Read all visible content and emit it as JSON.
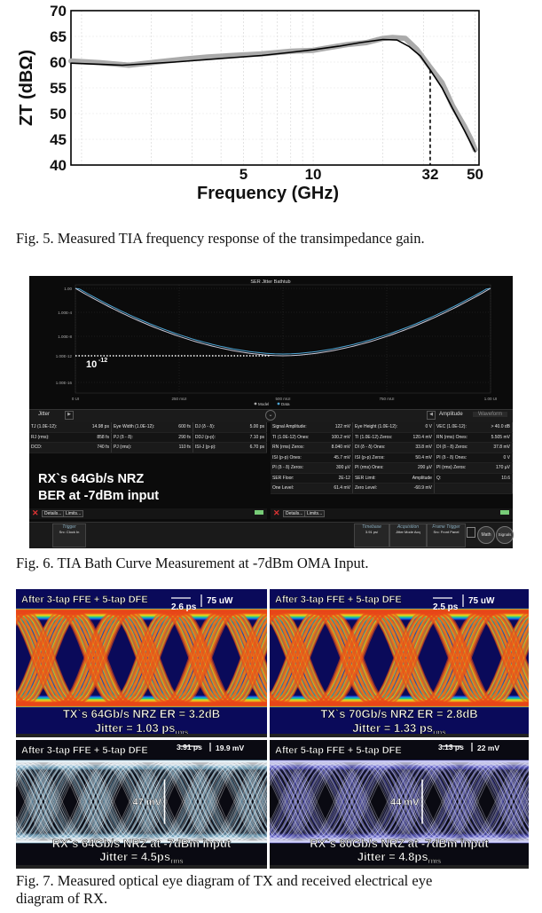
{
  "fig5": {
    "caption": "Fig. 5. Measured TIA frequency response of the transimpedance gain.",
    "chart_data": {
      "type": "line",
      "xlabel": "Frequency (GHz)",
      "ylabel": "ZT (dBΩ)",
      "x_scale": "log",
      "xlim": [
        0.9,
        52
      ],
      "ylim": [
        40,
        70
      ],
      "x_ticks": [
        "5",
        "10",
        "32",
        "50"
      ],
      "y_ticks": [
        "40",
        "45",
        "50",
        "55",
        "60",
        "65",
        "70"
      ],
      "marker_x": 32,
      "series": [
        {
          "color": "#aaaaaa",
          "points": [
            [
              0.9,
              60.2
            ],
            [
              1.2,
              59.9
            ],
            [
              1.6,
              59.4
            ],
            [
              2.2,
              60.1
            ],
            [
              2.8,
              60.6
            ],
            [
              3.5,
              61.0
            ],
            [
              4.5,
              61.3
            ],
            [
              6,
              61.6
            ],
            [
              8,
              62.1
            ],
            [
              10,
              62.3
            ],
            [
              12,
              62.9
            ],
            [
              14,
              63.4
            ],
            [
              17,
              63.8
            ],
            [
              20,
              64.6
            ],
            [
              22,
              64.8
            ],
            [
              25,
              64.6
            ],
            [
              28,
              62.5
            ],
            [
              32,
              59.0
            ],
            [
              36,
              56.0
            ],
            [
              40,
              51.5
            ],
            [
              45,
              47.5
            ],
            [
              48,
              45.0
            ],
            [
              50,
              43.0
            ]
          ]
        },
        {
          "color": "#000000",
          "points": [
            [
              0.9,
              59.8
            ],
            [
              1.5,
              59.4
            ],
            [
              2.5,
              60.0
            ],
            [
              4,
              60.7
            ],
            [
              6,
              61.3
            ],
            [
              8,
              61.9
            ],
            [
              10,
              62.4
            ],
            [
              13,
              63.1
            ],
            [
              16,
              63.8
            ],
            [
              20,
              64.4
            ],
            [
              23,
              64.3
            ],
            [
              26,
              63.0
            ],
            [
              29,
              61.2
            ],
            [
              32,
              58.5
            ],
            [
              36,
              55.0
            ],
            [
              40,
              51.0
            ],
            [
              45,
              46.7
            ],
            [
              50,
              42.6
            ]
          ]
        }
      ]
    }
  },
  "fig6": {
    "caption": "Fig. 6. TIA Bath Curve Measurement at -7dBm OMA Input.",
    "title": "SER Jitter Bathtub",
    "y_ticks": [
      "1.00",
      "1.00E-4",
      "1.00E-8",
      "1.00E-12",
      "1.00E-16"
    ],
    "x_ticks": [
      "0 UI",
      "250 mUI",
      "500 mUI",
      "750 mUI",
      "1.00 UI"
    ],
    "ber_label": "10",
    "ber_exp": "-12",
    "legend": [
      "Model",
      "Data"
    ],
    "tab_left": "Jitter",
    "tab_amp": "Amplitude",
    "tab_wave": "Waveform",
    "overlay_line1": "RX`s 64Gb/s NRZ",
    "overlay_line2": "BER at -7dBm input",
    "left_rows": [
      [
        "TJ (1.0E-12):",
        "14.98 ps",
        "Eye Width (1.0E-12):",
        "600 fs",
        "DJ (δ - δ):",
        "5.00 ps"
      ],
      [
        "RJ (rms):",
        "858 fs",
        "PJ (δ - δ):",
        "290 fs",
        "DDJ (p-p):",
        "7.10 ps"
      ],
      [
        "DCD:",
        "740 fs",
        "PJ (rms):",
        "110 fs",
        "ISI-J (p-p):",
        "6.70 ps"
      ]
    ],
    "right_rows": [
      [
        "Signal Amplitude:",
        "122 mV",
        "Eye Height (1.0E-12):",
        "0 V",
        "VEC (1.0E-12):",
        "> 40.0 dB"
      ],
      [
        "TI (1.0E-12) Ones:",
        "100.2 mV",
        "TI (1.0E-12) Zeros:",
        "120.4 mV",
        "RN (rms) Ones:",
        "5.505 mV"
      ],
      [
        "RN (rms) Zeros:",
        "8.040 mV",
        "DI (δ - δ) Ones:",
        "33.8 mV",
        "DI (δ - δ) Zeros:",
        "37.8 mV"
      ],
      [
        "ISI (p-p) Ones:",
        "45.7 mV",
        "ISI (p-p) Zeros:",
        "50.4 mV",
        "PI (δ - δ) Ones:",
        "0 V"
      ],
      [
        "PI (δ - δ) Zeros:",
        "300 µV",
        "PI (rms) Ones:",
        "200 µV",
        "PI (rms) Zeros:",
        "170 µV"
      ],
      [
        "SER Floor:",
        "2E-12",
        "SER Limit:",
        "Amplitude",
        "Q:",
        "10.6"
      ],
      [
        "One Level:",
        "61.4 mV",
        "Zero Level:",
        "-60.9 mV",
        "",
        ""
      ]
    ],
    "btn_details": "Details...",
    "btn_limits": "Limits...",
    "footer": {
      "trigger": "Trigger",
      "trigger_sub": "Src: Clock In",
      "timebase": "Timebase",
      "timebase_v": "3.91 ps/",
      "acquisition": "Acquisition",
      "acquisition_v": "Jitter Mode Acq",
      "frame_trigger": "Frame Trigger",
      "frame_trigger_v": "Src: Front Panel",
      "math": "Math",
      "signals": "Signals"
    }
  },
  "fig7": {
    "caption_l1": "Fig. 7. Measured optical eye diagram of TX and received electrical eye",
    "caption_l2": "diagram of RX.",
    "eyes": [
      {
        "title": "After 3-tap FFE + 5-tap DFE",
        "time_div": "2.6 ps",
        "amp_div": "75 uW",
        "line1": "TX`s 64Gb/s NRZ ER = 3.2dB",
        "jitter_prefix": "Jitter = ",
        "jitter_val": "1.03 ps",
        "jitter_sub": "rms",
        "eye_height": ""
      },
      {
        "title": "After 3-tap FFE + 5-tap DFE",
        "time_div": "2.5 ps",
        "amp_div": "75 uW",
        "line1": "TX`s 70Gb/s NRZ ER = 2.8dB",
        "jitter_prefix": "Jitter = ",
        "jitter_val": "1.33 ps",
        "jitter_sub": "rms",
        "eye_height": ""
      },
      {
        "title": "After 3-tap FFE + 5-tap DFE",
        "time_div": "3.91 ps",
        "amp_div": "19.9 mV",
        "line1": "RX`s 64Gb/s NRZ at -7dBm input",
        "jitter_prefix": "Jitter = ",
        "jitter_val": "4.5ps",
        "jitter_sub": "rms",
        "eye_height": "47 mV"
      },
      {
        "title": "After 5-tap FFE + 5-tap DFE",
        "time_div": "3.13 ps",
        "amp_div": "22 mV",
        "line1": "RX`s 80Gb/s NRZ at -7dBm input",
        "jitter_prefix": "Jitter = ",
        "jitter_val": "4.8ps",
        "jitter_sub": "rms",
        "eye_height": "44 mV"
      }
    ]
  }
}
